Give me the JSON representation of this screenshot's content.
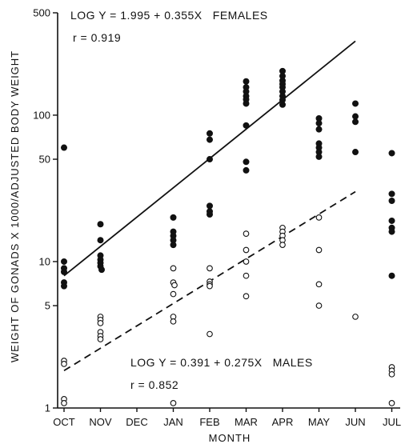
{
  "chart_data": {
    "type": "scatter",
    "xlabel": "MONTH",
    "ylabel": "WEIGHT OF GONADS X 1000/ADJUSTED BODY WEIGHT",
    "y_scale": "log",
    "ylim": [
      1,
      500
    ],
    "categories": [
      "OCT",
      "NOV",
      "DEC",
      "JAN",
      "FEB",
      "MAR",
      "APR",
      "MAY",
      "JUN",
      "JUL"
    ],
    "y_ticks": [
      {
        "value": 1,
        "label": "1"
      },
      {
        "value": 5,
        "label": "5"
      },
      {
        "value": 10,
        "label": "10"
      },
      {
        "value": 50,
        "label": "50"
      },
      {
        "value": 100,
        "label": "100"
      },
      {
        "value": 500,
        "label": "500"
      }
    ],
    "grid": false,
    "series": [
      {
        "name": "FEMALES",
        "marker": "filled-circle",
        "points": [
          {
            "x": "OCT",
            "y": 60
          },
          {
            "x": "OCT",
            "y": 10
          },
          {
            "x": "OCT",
            "y": 9
          },
          {
            "x": "OCT",
            "y": 8.5
          },
          {
            "x": "OCT",
            "y": 7.2
          },
          {
            "x": "OCT",
            "y": 6.8
          },
          {
            "x": "NOV",
            "y": 18
          },
          {
            "x": "NOV",
            "y": 14
          },
          {
            "x": "NOV",
            "y": 11
          },
          {
            "x": "NOV",
            "y": 10.3
          },
          {
            "x": "NOV",
            "y": 9.8
          },
          {
            "x": "NOV",
            "y": 9.3
          },
          {
            "x": "NOV",
            "y": 8.8
          },
          {
            "x": "JAN",
            "y": 20
          },
          {
            "x": "JAN",
            "y": 16
          },
          {
            "x": "JAN",
            "y": 15
          },
          {
            "x": "JAN",
            "y": 14
          },
          {
            "x": "JAN",
            "y": 13
          },
          {
            "x": "FEB",
            "y": 75
          },
          {
            "x": "FEB",
            "y": 68
          },
          {
            "x": "FEB",
            "y": 50
          },
          {
            "x": "FEB",
            "y": 24
          },
          {
            "x": "FEB",
            "y": 22
          },
          {
            "x": "FEB",
            "y": 21
          },
          {
            "x": "MAR",
            "y": 170
          },
          {
            "x": "MAR",
            "y": 155
          },
          {
            "x": "MAR",
            "y": 145
          },
          {
            "x": "MAR",
            "y": 135
          },
          {
            "x": "MAR",
            "y": 128
          },
          {
            "x": "MAR",
            "y": 120
          },
          {
            "x": "MAR",
            "y": 85
          },
          {
            "x": "MAR",
            "y": 48
          },
          {
            "x": "MAR",
            "y": 42
          },
          {
            "x": "APR",
            "y": 200
          },
          {
            "x": "APR",
            "y": 185
          },
          {
            "x": "APR",
            "y": 172
          },
          {
            "x": "APR",
            "y": 163
          },
          {
            "x": "APR",
            "y": 155
          },
          {
            "x": "APR",
            "y": 145
          },
          {
            "x": "APR",
            "y": 135
          },
          {
            "x": "APR",
            "y": 127
          },
          {
            "x": "APR",
            "y": 118
          },
          {
            "x": "MAY",
            "y": 95
          },
          {
            "x": "MAY",
            "y": 88
          },
          {
            "x": "MAY",
            "y": 80
          },
          {
            "x": "MAY",
            "y": 64
          },
          {
            "x": "MAY",
            "y": 60
          },
          {
            "x": "MAY",
            "y": 56
          },
          {
            "x": "MAY",
            "y": 52
          },
          {
            "x": "JUN",
            "y": 120
          },
          {
            "x": "JUN",
            "y": 98
          },
          {
            "x": "JUN",
            "y": 90
          },
          {
            "x": "JUN",
            "y": 56
          },
          {
            "x": "JUL",
            "y": 55
          },
          {
            "x": "JUL",
            "y": 29
          },
          {
            "x": "JUL",
            "y": 26
          },
          {
            "x": "JUL",
            "y": 19
          },
          {
            "x": "JUL",
            "y": 17
          },
          {
            "x": "JUL",
            "y": 16
          },
          {
            "x": "JUL",
            "y": 8
          }
        ]
      },
      {
        "name": "MALES",
        "marker": "open-circle",
        "points": [
          {
            "x": "OCT",
            "y": 2.1
          },
          {
            "x": "OCT",
            "y": 2.0
          },
          {
            "x": "OCT",
            "y": 1.15
          },
          {
            "x": "OCT",
            "y": 1.08
          },
          {
            "x": "NOV",
            "y": 4.2
          },
          {
            "x": "NOV",
            "y": 4.0
          },
          {
            "x": "NOV",
            "y": 3.8
          },
          {
            "x": "NOV",
            "y": 3.3
          },
          {
            "x": "NOV",
            "y": 3.1
          },
          {
            "x": "NOV",
            "y": 2.95
          },
          {
            "x": "JAN",
            "y": 9
          },
          {
            "x": "JAN",
            "y": 7.2
          },
          {
            "x": "JAN",
            "y": 6.9
          },
          {
            "x": "JAN",
            "y": 6.0
          },
          {
            "x": "JAN",
            "y": 4.2
          },
          {
            "x": "JAN",
            "y": 3.9
          },
          {
            "x": "JAN",
            "y": 1.08
          },
          {
            "x": "FEB",
            "y": 9
          },
          {
            "x": "FEB",
            "y": 7.3
          },
          {
            "x": "FEB",
            "y": 7.0
          },
          {
            "x": "FEB",
            "y": 6.8
          },
          {
            "x": "FEB",
            "y": 3.2
          },
          {
            "x": "MAR",
            "y": 15.5
          },
          {
            "x": "MAR",
            "y": 12
          },
          {
            "x": "MAR",
            "y": 10
          },
          {
            "x": "MAR",
            "y": 8
          },
          {
            "x": "MAR",
            "y": 5.8
          },
          {
            "x": "APR",
            "y": 17
          },
          {
            "x": "APR",
            "y": 16
          },
          {
            "x": "APR",
            "y": 15
          },
          {
            "x": "APR",
            "y": 14
          },
          {
            "x": "APR",
            "y": 13
          },
          {
            "x": "MAY",
            "y": 20
          },
          {
            "x": "MAY",
            "y": 12
          },
          {
            "x": "MAY",
            "y": 7
          },
          {
            "x": "MAY",
            "y": 5
          },
          {
            "x": "JUN",
            "y": 4.2
          },
          {
            "x": "JUL",
            "y": 1.9
          },
          {
            "x": "JUL",
            "y": 1.8
          },
          {
            "x": "JUL",
            "y": 1.7
          },
          {
            "x": "JUL",
            "y": 1.08
          }
        ]
      }
    ],
    "regression_lines": [
      {
        "series": "FEMALES",
        "style": "solid",
        "equation": "LOG Y = 1.995 + 0.355X",
        "x_from": "OCT",
        "x_to": "JUN",
        "y_from": 8,
        "y_to": 320
      },
      {
        "series": "MALES",
        "style": "dashed",
        "equation": "LOG Y = 0.391 + 0.275X",
        "x_from": "OCT",
        "x_to": "JUN",
        "y_from": 1.8,
        "y_to": 30
      }
    ],
    "annotations": [
      {
        "text": "LOG Y = 1.995 + 0.355X   FEMALES",
        "placement": "top-left"
      },
      {
        "text": "r = 0.919",
        "placement": "top-left"
      },
      {
        "text": "LOG Y = 0.391 + 0.275X   MALES",
        "placement": "bottom-center"
      },
      {
        "text": "r = 0.852",
        "placement": "bottom-center"
      }
    ]
  }
}
